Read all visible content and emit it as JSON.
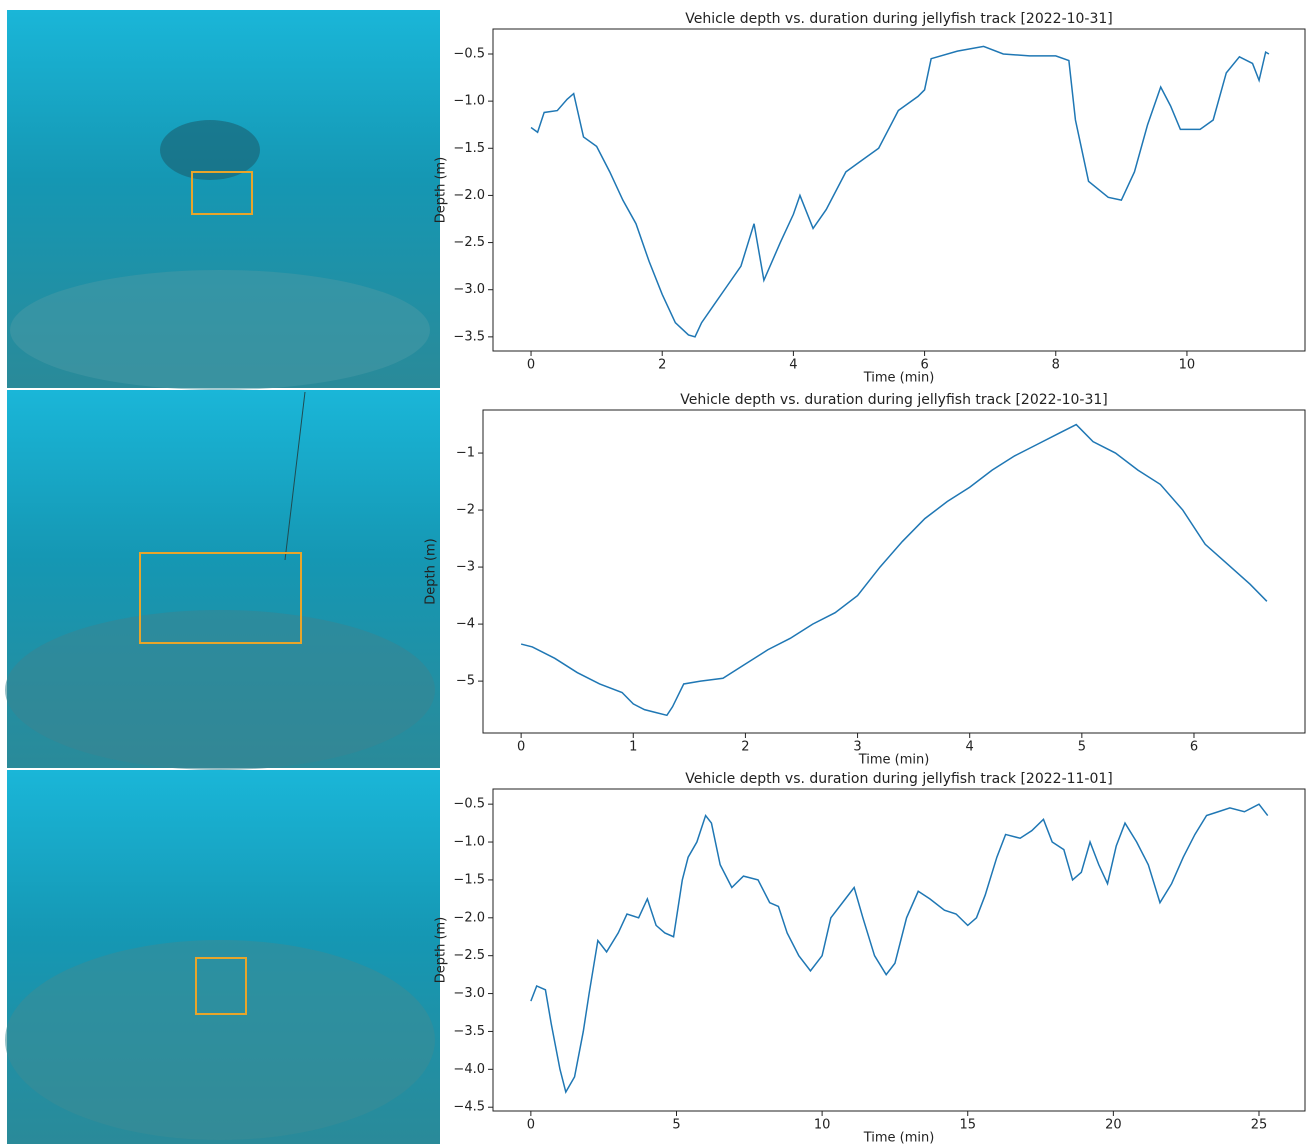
{
  "chart_data": [
    {
      "type": "line",
      "title": "Vehicle depth vs. duration during jellyfish track [2022-10-31]",
      "xlabel": "Time (min)",
      "ylabel": "Depth (m)",
      "color": "#1f77b4",
      "x": [
        0,
        0.1,
        0.2,
        0.4,
        0.55,
        0.65,
        0.8,
        1.0,
        1.2,
        1.4,
        1.6,
        1.8,
        2.0,
        2.2,
        2.4,
        2.5,
        2.6,
        2.8,
        3.0,
        3.2,
        3.4,
        3.55,
        3.8,
        4.0,
        4.1,
        4.3,
        4.5,
        4.8,
        5.0,
        5.3,
        5.6,
        5.9,
        6.0,
        6.1,
        6.5,
        6.9,
        7.2,
        7.6,
        8.0,
        8.2,
        8.3,
        8.5,
        8.8,
        9.0,
        9.2,
        9.4,
        9.6,
        9.75,
        9.9,
        10.2,
        10.4,
        10.6,
        10.8,
        11.0,
        11.1,
        11.2,
        11.25
      ],
      "values": [
        -1.28,
        -1.33,
        -1.12,
        -1.1,
        -0.98,
        -0.92,
        -1.38,
        -1.48,
        -1.75,
        -2.05,
        -2.3,
        -2.7,
        -3.05,
        -3.35,
        -3.48,
        -3.5,
        -3.35,
        -3.15,
        -2.95,
        -2.75,
        -2.3,
        -2.9,
        -2.5,
        -2.2,
        -2.0,
        -2.35,
        -2.15,
        -1.75,
        -1.65,
        -1.5,
        -1.1,
        -0.95,
        -0.88,
        -0.55,
        -0.47,
        -0.42,
        -0.5,
        -0.52,
        -0.52,
        -0.57,
        -1.2,
        -1.85,
        -2.02,
        -2.05,
        -1.75,
        -1.25,
        -0.85,
        -1.05,
        -1.3,
        -1.3,
        -1.2,
        -0.7,
        -0.53,
        -0.6,
        -0.78,
        -0.48,
        -0.5
      ],
      "xlim": [
        -0.58,
        11.8
      ],
      "ylim": [
        -3.65,
        -0.235
      ],
      "xticks": [
        0,
        2,
        4,
        6,
        8,
        10
      ],
      "yticks": [
        {
          "value": -0.5,
          "label": "−0.5"
        },
        {
          "value": -1.0,
          "label": "−1.0"
        },
        {
          "value": -1.5,
          "label": "−1.5"
        },
        {
          "value": -2.0,
          "label": "−2.0"
        },
        {
          "value": -2.5,
          "label": "−2.5"
        },
        {
          "value": -3.0,
          "label": "−3.0"
        },
        {
          "value": -3.5,
          "label": "−3.5"
        }
      ]
    },
    {
      "type": "line",
      "title": "Vehicle depth vs. duration during jellyfish track [2022-10-31]",
      "xlabel": "Time (min)",
      "ylabel": "Depth (m)",
      "color": "#1f77b4",
      "x": [
        0,
        0.1,
        0.3,
        0.5,
        0.7,
        0.9,
        1.0,
        1.1,
        1.2,
        1.3,
        1.35,
        1.45,
        1.6,
        1.8,
        2.0,
        2.2,
        2.4,
        2.6,
        2.8,
        3.0,
        3.2,
        3.4,
        3.6,
        3.8,
        4.0,
        4.2,
        4.4,
        4.6,
        4.8,
        4.95,
        5.1,
        5.3,
        5.5,
        5.7,
        5.9,
        6.1,
        6.3,
        6.5,
        6.65
      ],
      "values": [
        -4.35,
        -4.4,
        -4.6,
        -4.85,
        -5.05,
        -5.2,
        -5.4,
        -5.5,
        -5.55,
        -5.6,
        -5.45,
        -5.05,
        -5.0,
        -4.95,
        -4.7,
        -4.45,
        -4.25,
        -4.0,
        -3.8,
        -3.5,
        -3.0,
        -2.55,
        -2.15,
        -1.85,
        -1.6,
        -1.3,
        -1.05,
        -0.85,
        -0.65,
        -0.5,
        -0.8,
        -1.0,
        -1.3,
        -1.55,
        -2.0,
        -2.6,
        -2.95,
        -3.3,
        -3.6
      ],
      "xlim": [
        -0.34,
        6.99
      ],
      "ylim": [
        -5.91,
        -0.245
      ],
      "xticks": [
        0,
        1,
        2,
        3,
        4,
        5,
        6
      ],
      "yticks": [
        {
          "value": -1,
          "label": "−1"
        },
        {
          "value": -2,
          "label": "−2"
        },
        {
          "value": -3,
          "label": "−3"
        },
        {
          "value": -4,
          "label": "−4"
        },
        {
          "value": -5,
          "label": "−5"
        }
      ]
    },
    {
      "type": "line",
      "title": "Vehicle depth vs. duration during jellyfish track [2022-11-01]",
      "xlabel": "Time (min)",
      "ylabel": "Depth (m)",
      "color": "#1f77b4",
      "x": [
        0,
        0.2,
        0.5,
        0.7,
        1.0,
        1.2,
        1.5,
        1.8,
        2.0,
        2.3,
        2.6,
        3.0,
        3.3,
        3.7,
        4.0,
        4.3,
        4.6,
        4.9,
        5.2,
        5.4,
        5.7,
        6.0,
        6.2,
        6.5,
        6.9,
        7.3,
        7.8,
        8.2,
        8.5,
        8.8,
        9.2,
        9.6,
        10.0,
        10.3,
        10.8,
        11.1,
        11.4,
        11.8,
        12.2,
        12.5,
        12.9,
        13.3,
        13.7,
        14.2,
        14.6,
        15.0,
        15.3,
        15.6,
        16.0,
        16.3,
        16.8,
        17.2,
        17.6,
        17.9,
        18.3,
        18.6,
        18.9,
        19.2,
        19.5,
        19.8,
        20.1,
        20.4,
        20.8,
        21.2,
        21.6,
        22.0,
        22.4,
        22.8,
        23.2,
        23.6,
        24.0,
        24.5,
        25.0,
        25.3
      ],
      "values": [
        -3.1,
        -2.9,
        -2.95,
        -3.4,
        -4.0,
        -4.3,
        -4.1,
        -3.5,
        -3.0,
        -2.3,
        -2.45,
        -2.2,
        -1.95,
        -2.0,
        -1.75,
        -2.1,
        -2.2,
        -2.25,
        -1.5,
        -1.2,
        -1.0,
        -0.65,
        -0.75,
        -1.3,
        -1.6,
        -1.45,
        -1.5,
        -1.8,
        -1.85,
        -2.2,
        -2.5,
        -2.7,
        -2.5,
        -2.0,
        -1.75,
        -1.6,
        -2.0,
        -2.5,
        -2.75,
        -2.6,
        -2.0,
        -1.65,
        -1.75,
        -1.9,
        -1.95,
        -2.1,
        -2.0,
        -1.7,
        -1.2,
        -0.9,
        -0.95,
        -0.85,
        -0.7,
        -1.0,
        -1.1,
        -1.5,
        -1.4,
        -1.0,
        -1.3,
        -1.55,
        -1.05,
        -0.75,
        -1.0,
        -1.3,
        -1.8,
        -1.55,
        -1.2,
        -0.9,
        -0.65,
        -0.6,
        -0.55,
        -0.6,
        -0.5,
        -0.65
      ],
      "xlim": [
        -1.3,
        26.58
      ],
      "ylim": [
        -4.55,
        -0.3
      ],
      "xticks": [
        0,
        5,
        10,
        15,
        20,
        25
      ],
      "yticks": [
        {
          "value": -0.5,
          "label": "−0.5"
        },
        {
          "value": -1.0,
          "label": "−1.0"
        },
        {
          "value": -1.5,
          "label": "−1.5"
        },
        {
          "value": -2.0,
          "label": "−2.0"
        },
        {
          "value": -2.5,
          "label": "−2.5"
        },
        {
          "value": -3.0,
          "label": "−3.0"
        },
        {
          "value": -3.5,
          "label": "−3.5"
        },
        {
          "value": -4.0,
          "label": "−4.0"
        },
        {
          "value": -4.5,
          "label": "−4.5"
        }
      ]
    }
  ]
}
